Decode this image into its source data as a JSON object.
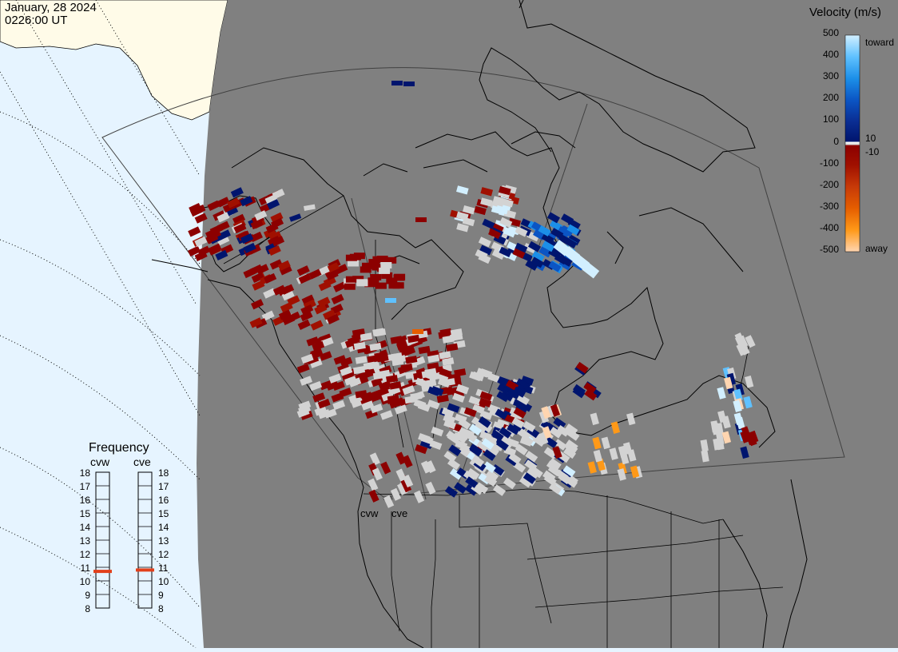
{
  "header": {
    "date": "January, 28 2024",
    "time": "0226:00 UT"
  },
  "colors": {
    "night": "#808080",
    "day_ocean": "#e6f4ff",
    "day_land": "#fffbe8",
    "ground_scatter": "#d3d3d3",
    "frequency_marker": "#e2401c"
  },
  "velocity_scale": {
    "title": "Velocity (m/s)",
    "ticks": [
      "500",
      "400",
      "300",
      "200",
      "100",
      "10",
      "0",
      "-10",
      "-100",
      "-200",
      "-300",
      "-400",
      "-500"
    ],
    "toward_label": "toward",
    "away_label": "away",
    "stops": [
      {
        "value": 500,
        "color": "#d2efff"
      },
      {
        "value": 400,
        "color": "#5fc1ff"
      },
      {
        "value": 300,
        "color": "#1c8fe8"
      },
      {
        "value": 200,
        "color": "#0b55c4"
      },
      {
        "value": 100,
        "color": "#0a2d92"
      },
      {
        "value": 10,
        "color": "#00156e"
      },
      {
        "value": -10,
        "color": "#8c0000"
      },
      {
        "value": -100,
        "color": "#a01000"
      },
      {
        "value": -200,
        "color": "#c73a08"
      },
      {
        "value": -300,
        "color": "#e55e00"
      },
      {
        "value": -400,
        "color": "#ff9918"
      },
      {
        "value": -500,
        "color": "#ffd5b0"
      }
    ]
  },
  "frequency_panel": {
    "title": "Frequency",
    "unit_note": "",
    "ticks": [
      "18",
      "17",
      "16",
      "15",
      "14",
      "13",
      "12",
      "11",
      "10",
      "9",
      "8"
    ],
    "radars": [
      {
        "name": "cvw",
        "frequency": 10.7
      },
      {
        "name": "cve",
        "frequency": 10.8
      }
    ]
  },
  "map": {
    "radar_sites": [
      {
        "label": "cvw"
      },
      {
        "label": "cve"
      }
    ]
  }
}
